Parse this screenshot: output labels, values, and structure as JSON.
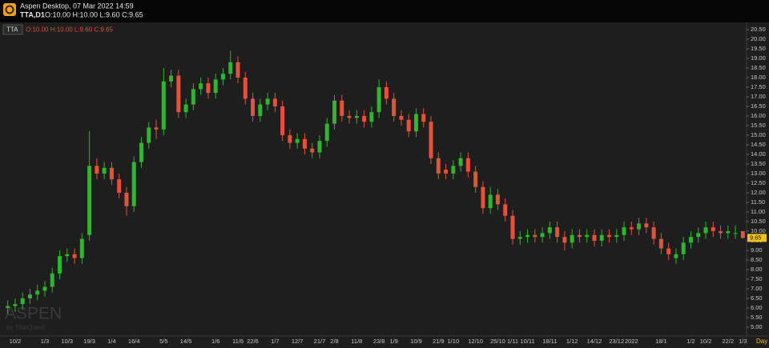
{
  "header": {
    "title": "Aspen Desktop, 07 Mar 2022 14:59",
    "symbol": "TTA,D1",
    "ohlc": "O:10.00 H:10.00 L:9.60 C:9.65"
  },
  "legend": {
    "symbol": "TTA",
    "ohlc": "O:10.00 H:10.00 L:9.60 C:9.65"
  },
  "watermark": {
    "brand": "ASPEN",
    "by": "by ThaiQuest"
  },
  "chart_data": {
    "type": "candlestick",
    "up_color": "#2fb52f",
    "down_color": "#e4523b",
    "x_unit": "Day",
    "last_price": {
      "value": 9.65,
      "label": "9.65"
    },
    "categories": [
      null,
      "10/2",
      null,
      null,
      null,
      "1/3",
      null,
      null,
      "10/3",
      null,
      null,
      "19/3",
      null,
      null,
      "1/4",
      null,
      null,
      "16/4",
      null,
      null,
      null,
      "5/5",
      null,
      null,
      "14/5",
      null,
      null,
      null,
      "1/6",
      null,
      null,
      "11/6",
      null,
      "22/6",
      null,
      null,
      "1/7",
      null,
      null,
      "12/7",
      null,
      null,
      "21/7",
      null,
      "2/8",
      null,
      null,
      "11/8",
      null,
      null,
      "23/8",
      null,
      "1/9",
      null,
      null,
      "10/9",
      null,
      null,
      "21/9",
      null,
      "1/10",
      null,
      null,
      "12/10",
      null,
      null,
      "25/10",
      null,
      "1/11",
      null,
      "10/11",
      null,
      null,
      "18/11",
      null,
      null,
      "1/12",
      null,
      null,
      "14/12",
      null,
      null,
      "23/12",
      null,
      "2022",
      null,
      null,
      null,
      "18/1",
      null,
      null,
      null,
      "1/2",
      null,
      "10/2",
      null,
      null,
      "22/2",
      null,
      "1/3"
    ],
    "open": [
      6.0,
      6.1,
      6.2,
      6.5,
      6.7,
      6.9,
      7.1,
      7.8,
      8.7,
      8.8,
      8.6,
      9.8,
      13.4,
      13.0,
      13.3,
      12.7,
      12.0,
      11.3,
      13.6,
      14.6,
      15.4,
      15.3,
      17.8,
      18.1,
      16.2,
      16.6,
      17.4,
      17.7,
      17.2,
      17.9,
      18.2,
      18.8,
      18.0,
      16.9,
      16.0,
      16.6,
      16.9,
      16.5,
      15.0,
      14.6,
      14.8,
      14.3,
      14.1,
      14.7,
      15.6,
      16.8,
      16.0,
      15.9,
      16.0,
      15.7,
      16.2,
      17.5,
      16.9,
      16.0,
      15.8,
      15.2,
      16.1,
      15.7,
      13.8,
      13.2,
      13.0,
      13.4,
      13.8,
      13.1,
      12.3,
      11.2,
      11.9,
      11.4,
      10.8,
      9.6,
      9.7,
      9.8,
      9.7,
      9.9,
      10.2,
      9.7,
      9.4,
      9.8,
      9.7,
      9.8,
      9.5,
      9.8,
      9.7,
      9.8,
      10.2,
      10.1,
      10.4,
      10.2,
      9.6,
      9.1,
      8.6,
      8.8,
      9.4,
      9.7,
      9.9,
      10.2,
      10.0,
      9.9,
      9.9,
      10.0
    ],
    "high": [
      6.4,
      6.5,
      6.8,
      7.0,
      7.2,
      7.4,
      8.1,
      9.0,
      9.1,
      9.1,
      9.9,
      15.2,
      13.8,
      13.6,
      13.6,
      13.0,
      12.3,
      13.9,
      14.9,
      15.7,
      15.8,
      18.5,
      18.4,
      18.4,
      16.9,
      17.7,
      18.0,
      18.0,
      18.2,
      18.5,
      19.4,
      19.1,
      18.3,
      17.2,
      16.9,
      17.2,
      17.2,
      16.8,
      15.3,
      15.1,
      15.1,
      14.6,
      15.0,
      15.9,
      17.1,
      17.1,
      16.3,
      16.3,
      16.3,
      16.5,
      17.9,
      17.8,
      17.2,
      16.3,
      16.1,
      16.4,
      16.4,
      16.0,
      14.1,
      13.5,
      13.7,
      14.1,
      14.1,
      13.4,
      12.6,
      12.3,
      12.2,
      11.7,
      11.1,
      10.0,
      10.1,
      10.1,
      10.2,
      10.5,
      10.5,
      10.0,
      10.1,
      10.1,
      10.1,
      10.1,
      10.1,
      10.1,
      10.1,
      10.5,
      10.5,
      10.7,
      10.7,
      10.5,
      9.9,
      9.4,
      9.1,
      9.7,
      10.0,
      10.2,
      10.5,
      10.5,
      10.3,
      10.3,
      10.3,
      10.0
    ],
    "low": [
      5.7,
      5.8,
      5.9,
      6.2,
      6.4,
      6.6,
      6.8,
      7.5,
      8.4,
      8.3,
      8.3,
      9.5,
      12.7,
      12.7,
      12.4,
      11.7,
      10.8,
      11.0,
      13.3,
      14.3,
      14.8,
      15.0,
      17.5,
      15.9,
      15.9,
      16.3,
      17.1,
      16.9,
      16.9,
      17.6,
      17.9,
      17.7,
      16.6,
      15.7,
      15.7,
      16.3,
      16.2,
      14.7,
      14.3,
      14.3,
      14.0,
      13.8,
      13.8,
      14.4,
      15.3,
      15.7,
      15.6,
      15.6,
      15.4,
      15.4,
      15.9,
      16.6,
      15.7,
      15.5,
      14.9,
      14.9,
      15.4,
      13.5,
      12.7,
      12.7,
      12.7,
      13.1,
      12.8,
      12.0,
      10.9,
      10.9,
      11.1,
      10.5,
      9.3,
      9.3,
      9.4,
      9.4,
      9.4,
      9.6,
      9.4,
      9.0,
      9.1,
      9.4,
      9.4,
      9.2,
      9.2,
      9.4,
      9.4,
      9.5,
      9.8,
      9.8,
      9.9,
      9.3,
      8.8,
      8.5,
      8.3,
      8.5,
      9.1,
      9.4,
      9.6,
      9.7,
      9.6,
      9.6,
      9.6,
      9.6
    ],
    "close": [
      6.1,
      6.2,
      6.5,
      6.7,
      6.9,
      7.1,
      7.8,
      8.7,
      8.8,
      8.6,
      9.6,
      13.4,
      13.0,
      13.3,
      12.7,
      12.0,
      11.3,
      13.6,
      14.6,
      15.4,
      15.3,
      17.8,
      18.1,
      16.2,
      16.6,
      17.4,
      17.7,
      17.2,
      17.9,
      18.2,
      18.8,
      18.0,
      16.9,
      16.0,
      16.6,
      16.9,
      16.5,
      15.0,
      14.6,
      14.8,
      14.3,
      14.1,
      14.7,
      15.6,
      16.8,
      16.0,
      15.9,
      16.0,
      15.7,
      16.2,
      17.5,
      16.9,
      16.0,
      15.8,
      15.2,
      16.1,
      15.7,
      13.8,
      13.0,
      13.0,
      13.4,
      13.8,
      13.1,
      12.3,
      11.2,
      11.9,
      11.4,
      10.8,
      9.6,
      9.7,
      9.8,
      9.7,
      9.9,
      10.2,
      9.7,
      9.4,
      9.8,
      9.7,
      9.8,
      9.5,
      9.8,
      9.7,
      9.8,
      10.2,
      10.1,
      10.4,
      10.2,
      9.6,
      9.1,
      8.8,
      8.8,
      9.4,
      9.7,
      9.9,
      10.2,
      10.0,
      9.9,
      10.0,
      9.9,
      9.65
    ],
    "ylim": [
      4.54,
      20.79
    ],
    "yticks": [
      {
        "value": 5,
        "label": "5.00"
      },
      {
        "value": 5.5,
        "label": "5.50"
      },
      {
        "value": 6,
        "label": "6.00"
      },
      {
        "value": 6.5,
        "label": "6.50"
      },
      {
        "value": 7,
        "label": "7.00"
      },
      {
        "value": 7.5,
        "label": "7.50"
      },
      {
        "value": 8,
        "label": "8.00"
      },
      {
        "value": 8.5,
        "label": "8.50"
      },
      {
        "value": 9,
        "label": "9.00"
      },
      {
        "value": 9.5,
        "label": "9.50"
      },
      {
        "value": 10,
        "label": "10.00"
      },
      {
        "value": 10.5,
        "label": "10.50"
      },
      {
        "value": 11,
        "label": "11.00"
      },
      {
        "value": 11.5,
        "label": "11.50"
      },
      {
        "value": 12,
        "label": "12.00"
      },
      {
        "value": 12.5,
        "label": "12.50"
      },
      {
        "value": 13,
        "label": "13.00"
      },
      {
        "value": 13.5,
        "label": "13.50"
      },
      {
        "value": 14,
        "label": "14.00"
      },
      {
        "value": 14.5,
        "label": "14.50"
      },
      {
        "value": 15,
        "label": "15.00"
      },
      {
        "value": 15.5,
        "label": "15.50"
      },
      {
        "value": 16,
        "label": "16.00"
      },
      {
        "value": 16.5,
        "label": "16.50"
      },
      {
        "value": 17,
        "label": "17.00"
      },
      {
        "value": 17.5,
        "label": "17.50"
      },
      {
        "value": 18,
        "label": "18.00"
      },
      {
        "value": 18.5,
        "label": "18.50"
      },
      {
        "value": 19,
        "label": "19.00"
      },
      {
        "value": 19.5,
        "label": "19.50"
      },
      {
        "value": 20,
        "label": "20.00"
      },
      {
        "value": 20.5,
        "label": "20.50"
      }
    ]
  }
}
